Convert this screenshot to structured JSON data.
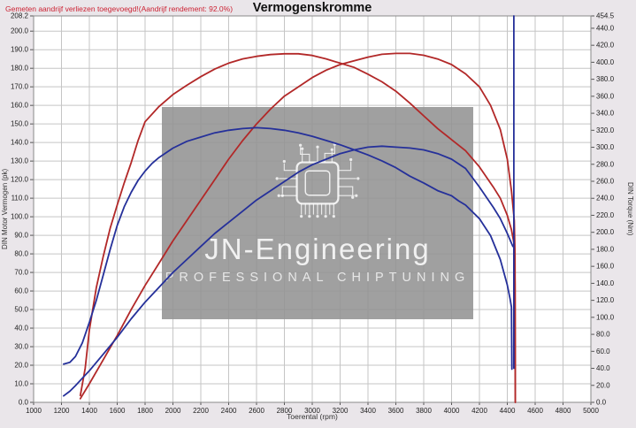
{
  "header": {
    "note": "Gemeten aandrijf verliezen toegevoegd!(Aandrijf rendement: 92.0%)",
    "title": "Vermogenskromme"
  },
  "watermark": {
    "brand": "JN-Engineering",
    "tagline": "PROFESSIONAL CHIPTUNING",
    "icon": "cpu-chip-icon"
  },
  "colors": {
    "background": "#eae6ea",
    "plot_background": "#ffffff",
    "grid": "#c5c5c5",
    "plot_border": "#8a8a8a",
    "tick_text": "#222222",
    "note_red": "#cc2233",
    "curve_red": "#b22828",
    "curve_blue": "#25309a"
  },
  "chart_data": {
    "type": "line",
    "title": "Vermogenskromme",
    "xlabel": "Toerental (rpm)",
    "ylabel_left": "DIN Motor Vermogen (pk)",
    "ylabel_right": "DIN Torque (Nm)",
    "x_range": [
      1000,
      5000
    ],
    "x_tick_step": 200,
    "y_left_range": [
      0,
      208.2
    ],
    "y_left_tick_step": 10,
    "y_right_range": [
      0,
      454.5
    ],
    "y_right_tick_step": 20,
    "grid": true,
    "legend": "none",
    "series": [
      {
        "name": "power-red-tuned",
        "axis": "left",
        "unit": "pk",
        "color": "#b22828",
        "points": [
          [
            1335,
            2
          ],
          [
            1400,
            10
          ],
          [
            1500,
            23
          ],
          [
            1600,
            36
          ],
          [
            1700,
            50
          ],
          [
            1800,
            63
          ],
          [
            1900,
            75
          ],
          [
            2000,
            87
          ],
          [
            2100,
            98
          ],
          [
            2200,
            109
          ],
          [
            2300,
            120
          ],
          [
            2400,
            131
          ],
          [
            2500,
            141
          ],
          [
            2600,
            150
          ],
          [
            2700,
            158
          ],
          [
            2800,
            165
          ],
          [
            2900,
            170
          ],
          [
            3000,
            175
          ],
          [
            3100,
            179
          ],
          [
            3200,
            182
          ],
          [
            3300,
            184
          ],
          [
            3400,
            186
          ],
          [
            3500,
            187.5
          ],
          [
            3600,
            188
          ],
          [
            3700,
            188
          ],
          [
            3800,
            187
          ],
          [
            3900,
            185
          ],
          [
            4000,
            182
          ],
          [
            4100,
            177
          ],
          [
            4200,
            170
          ],
          [
            4280,
            160
          ],
          [
            4350,
            147
          ],
          [
            4400,
            131
          ],
          [
            4430,
            114
          ],
          [
            4450,
            98
          ],
          [
            4455,
            80
          ],
          [
            4458,
            0
          ]
        ]
      },
      {
        "name": "torque-red-tuned",
        "axis": "right",
        "unit": "Nm",
        "color": "#b22828",
        "points": [
          [
            1335,
            8
          ],
          [
            1370,
            40
          ],
          [
            1400,
            85
          ],
          [
            1450,
            135
          ],
          [
            1500,
            172
          ],
          [
            1550,
            205
          ],
          [
            1600,
            232
          ],
          [
            1650,
            258
          ],
          [
            1700,
            282
          ],
          [
            1750,
            308
          ],
          [
            1800,
            330
          ],
          [
            1900,
            348
          ],
          [
            2000,
            362
          ],
          [
            2100,
            373
          ],
          [
            2200,
            383
          ],
          [
            2300,
            392
          ],
          [
            2400,
            399
          ],
          [
            2500,
            404
          ],
          [
            2600,
            407
          ],
          [
            2700,
            409
          ],
          [
            2800,
            410
          ],
          [
            2900,
            410
          ],
          [
            3000,
            408
          ],
          [
            3100,
            404
          ],
          [
            3200,
            399
          ],
          [
            3300,
            394
          ],
          [
            3400,
            386
          ],
          [
            3500,
            377
          ],
          [
            3600,
            366
          ],
          [
            3700,
            352
          ],
          [
            3800,
            337
          ],
          [
            3900,
            322
          ],
          [
            4000,
            309
          ],
          [
            4100,
            296
          ],
          [
            4200,
            277
          ],
          [
            4300,
            253
          ],
          [
            4350,
            240
          ],
          [
            4400,
            220
          ],
          [
            4430,
            203
          ],
          [
            4450,
            185
          ],
          [
            4455,
            140
          ],
          [
            4458,
            0
          ]
        ]
      },
      {
        "name": "power-blue-stock",
        "axis": "left",
        "unit": "pk",
        "color": "#25309a",
        "points": [
          [
            1215,
            3.5
          ],
          [
            1260,
            6
          ],
          [
            1300,
            9
          ],
          [
            1350,
            13
          ],
          [
            1400,
            17
          ],
          [
            1500,
            26
          ],
          [
            1600,
            35
          ],
          [
            1700,
            45
          ],
          [
            1800,
            54
          ],
          [
            1900,
            62
          ],
          [
            2000,
            70
          ],
          [
            2100,
            77
          ],
          [
            2200,
            84
          ],
          [
            2300,
            91
          ],
          [
            2400,
            97
          ],
          [
            2500,
            103
          ],
          [
            2600,
            109
          ],
          [
            2700,
            114
          ],
          [
            2800,
            119
          ],
          [
            2900,
            124
          ],
          [
            3000,
            128
          ],
          [
            3100,
            131
          ],
          [
            3200,
            134
          ],
          [
            3300,
            136
          ],
          [
            3400,
            137.5
          ],
          [
            3500,
            138
          ],
          [
            3600,
            137.5
          ],
          [
            3700,
            137
          ],
          [
            3800,
            136
          ],
          [
            3900,
            134
          ],
          [
            4000,
            131
          ],
          [
            4100,
            126
          ],
          [
            4200,
            116
          ],
          [
            4300,
            105
          ],
          [
            4350,
            99
          ],
          [
            4400,
            91
          ],
          [
            4440,
            84
          ]
        ]
      },
      {
        "name": "torque-blue-stock",
        "axis": "right",
        "unit": "Nm",
        "color": "#25309a",
        "points": [
          [
            1215,
            45
          ],
          [
            1260,
            47
          ],
          [
            1300,
            54
          ],
          [
            1350,
            70
          ],
          [
            1400,
            94
          ],
          [
            1450,
            120
          ],
          [
            1500,
            150
          ],
          [
            1550,
            180
          ],
          [
            1600,
            208
          ],
          [
            1650,
            230
          ],
          [
            1700,
            247
          ],
          [
            1750,
            261
          ],
          [
            1800,
            272
          ],
          [
            1850,
            281
          ],
          [
            1900,
            288
          ],
          [
            2000,
            299
          ],
          [
            2100,
            307
          ],
          [
            2200,
            312
          ],
          [
            2300,
            317
          ],
          [
            2400,
            320
          ],
          [
            2500,
            322
          ],
          [
            2600,
            323
          ],
          [
            2700,
            322
          ],
          [
            2800,
            320
          ],
          [
            2900,
            317
          ],
          [
            3000,
            313
          ],
          [
            3100,
            308
          ],
          [
            3200,
            303
          ],
          [
            3300,
            297
          ],
          [
            3400,
            291
          ],
          [
            3500,
            284
          ],
          [
            3600,
            276
          ],
          [
            3700,
            266
          ],
          [
            3800,
            258
          ],
          [
            3900,
            249
          ],
          [
            4000,
            243
          ],
          [
            4050,
            237
          ],
          [
            4100,
            232
          ],
          [
            4200,
            216
          ],
          [
            4280,
            196
          ],
          [
            4350,
            168
          ],
          [
            4400,
            138
          ],
          [
            4420,
            122
          ],
          [
            4430,
            112
          ],
          [
            4433,
            39
          ]
        ]
      },
      {
        "name": "blue-run-end-spike",
        "axis": "right",
        "unit": "Nm",
        "color": "#25309a",
        "points": [
          [
            4447,
            454.5
          ],
          [
            4447,
            40
          ]
        ]
      }
    ]
  }
}
